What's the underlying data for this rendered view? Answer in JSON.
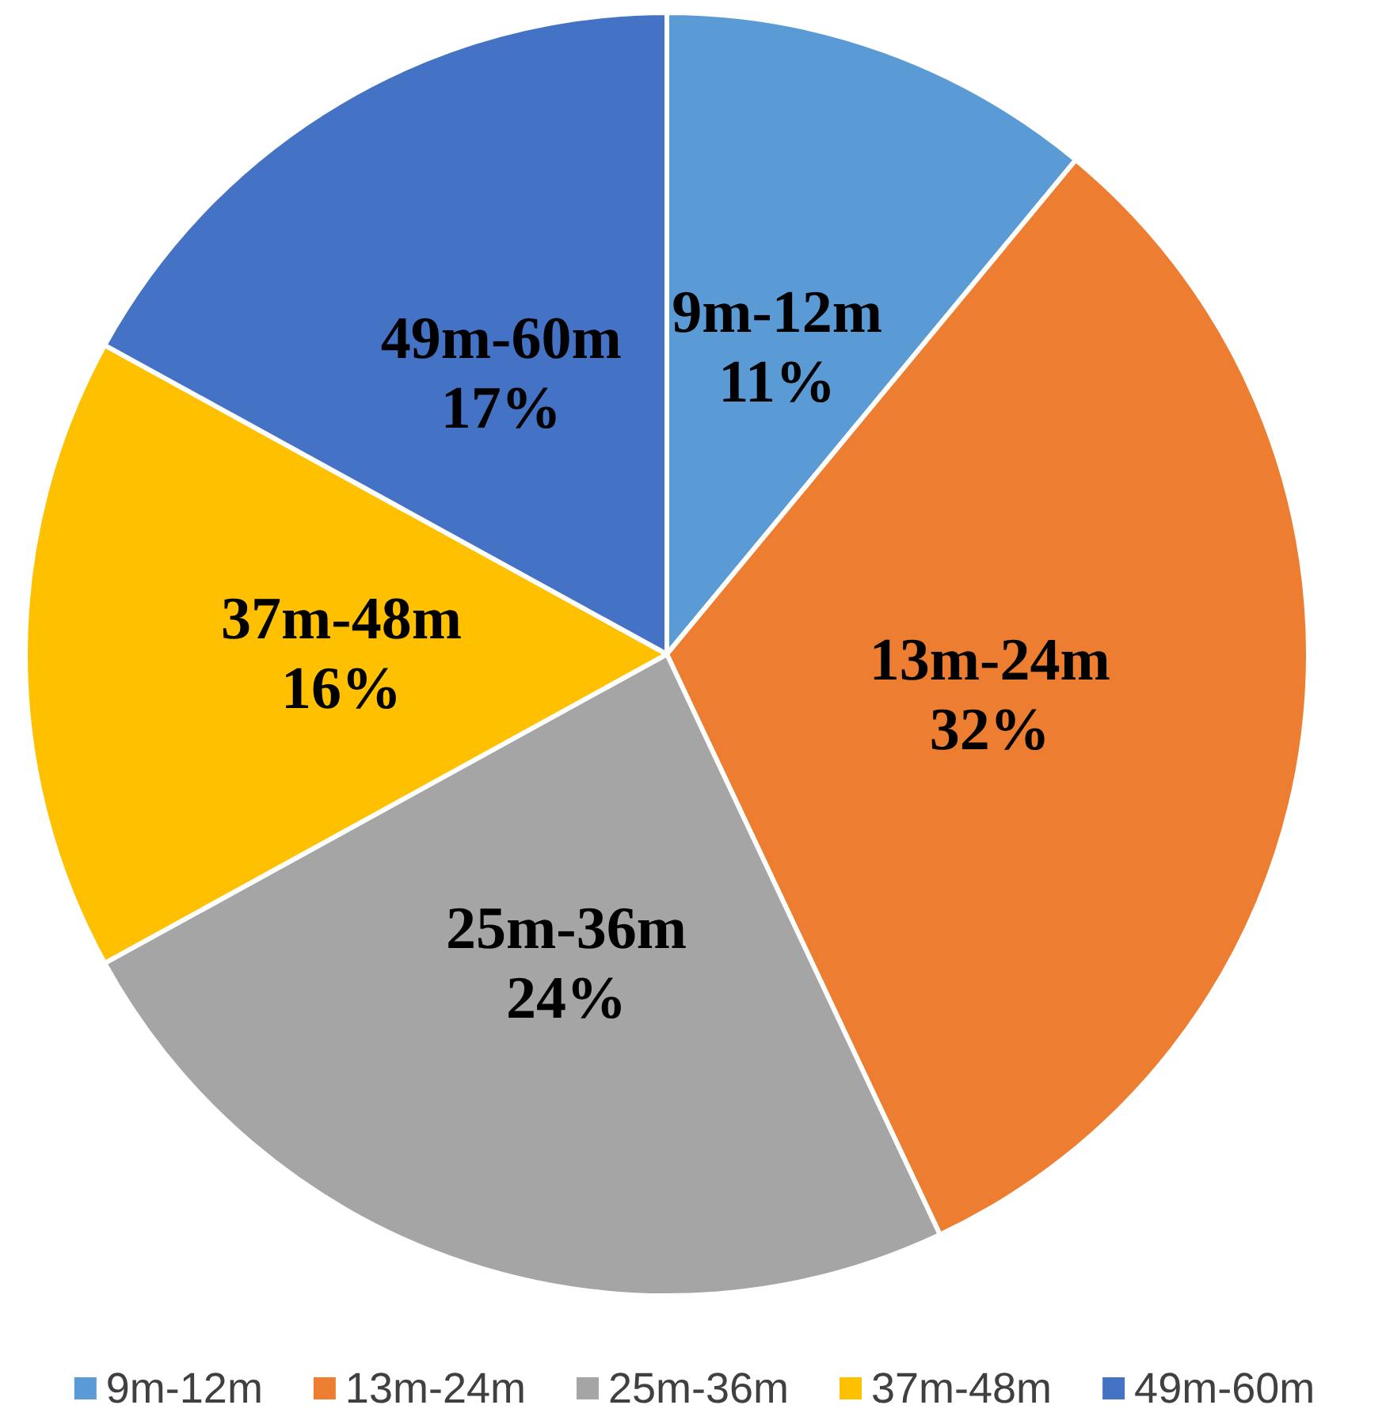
{
  "chart_data": {
    "type": "pie",
    "categories": [
      "9m-12m",
      "13m-24m",
      "25m-36m",
      "37m-48m",
      "49m-60m"
    ],
    "values": [
      11,
      32,
      24,
      16,
      17
    ],
    "colors": [
      "#5b9bd5",
      "#ed7d31",
      "#a5a5a5",
      "#ffc000",
      "#4472c4"
    ],
    "value_labels": [
      "11%",
      "32%",
      "24%",
      "16%",
      "17%"
    ],
    "legend": "bottom"
  }
}
